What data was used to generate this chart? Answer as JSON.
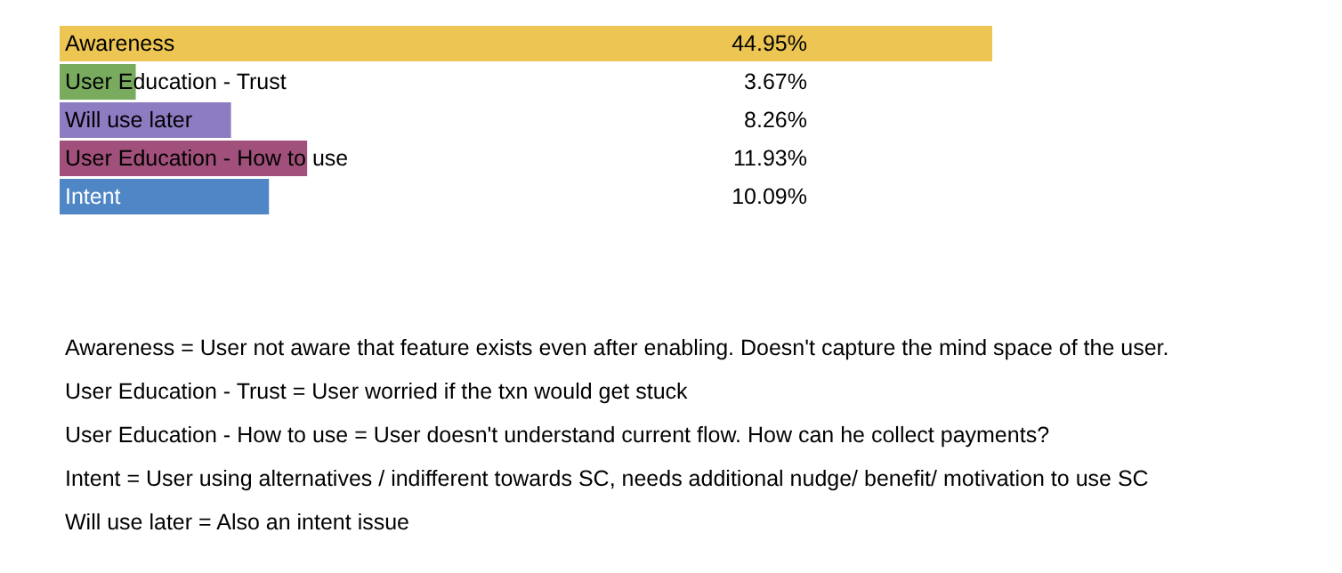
{
  "chart_data": {
    "type": "bar",
    "orientation": "horizontal",
    "categories": [
      "Awareness",
      "User Education - Trust",
      "Will use later",
      "User Education - How to use",
      "Intent"
    ],
    "values": [
      44.95,
      3.67,
      8.26,
      11.93,
      10.09
    ],
    "value_labels": [
      "44.95%",
      "3.67%",
      "8.26%",
      "11.93%",
      "10.09%"
    ],
    "colors": [
      "#ecc553",
      "#79ab5f",
      "#8e7cc3",
      "#a0507a",
      "#4f86c6"
    ],
    "grid": false,
    "annotations": [
      "Awareness = User not aware that feature exists even after enabling. Doesn't capture the mind space of the user.",
      "User Education - Trust = User worried if the txn would get stuck",
      "User Education - How to use = User doesn't understand current flow. How can he collect payments?",
      "Intent = User using alternatives / indifferent towards SC, needs additional nudge/ benefit/ motivation to use SC",
      "Will use later = Also an intent issue"
    ]
  }
}
